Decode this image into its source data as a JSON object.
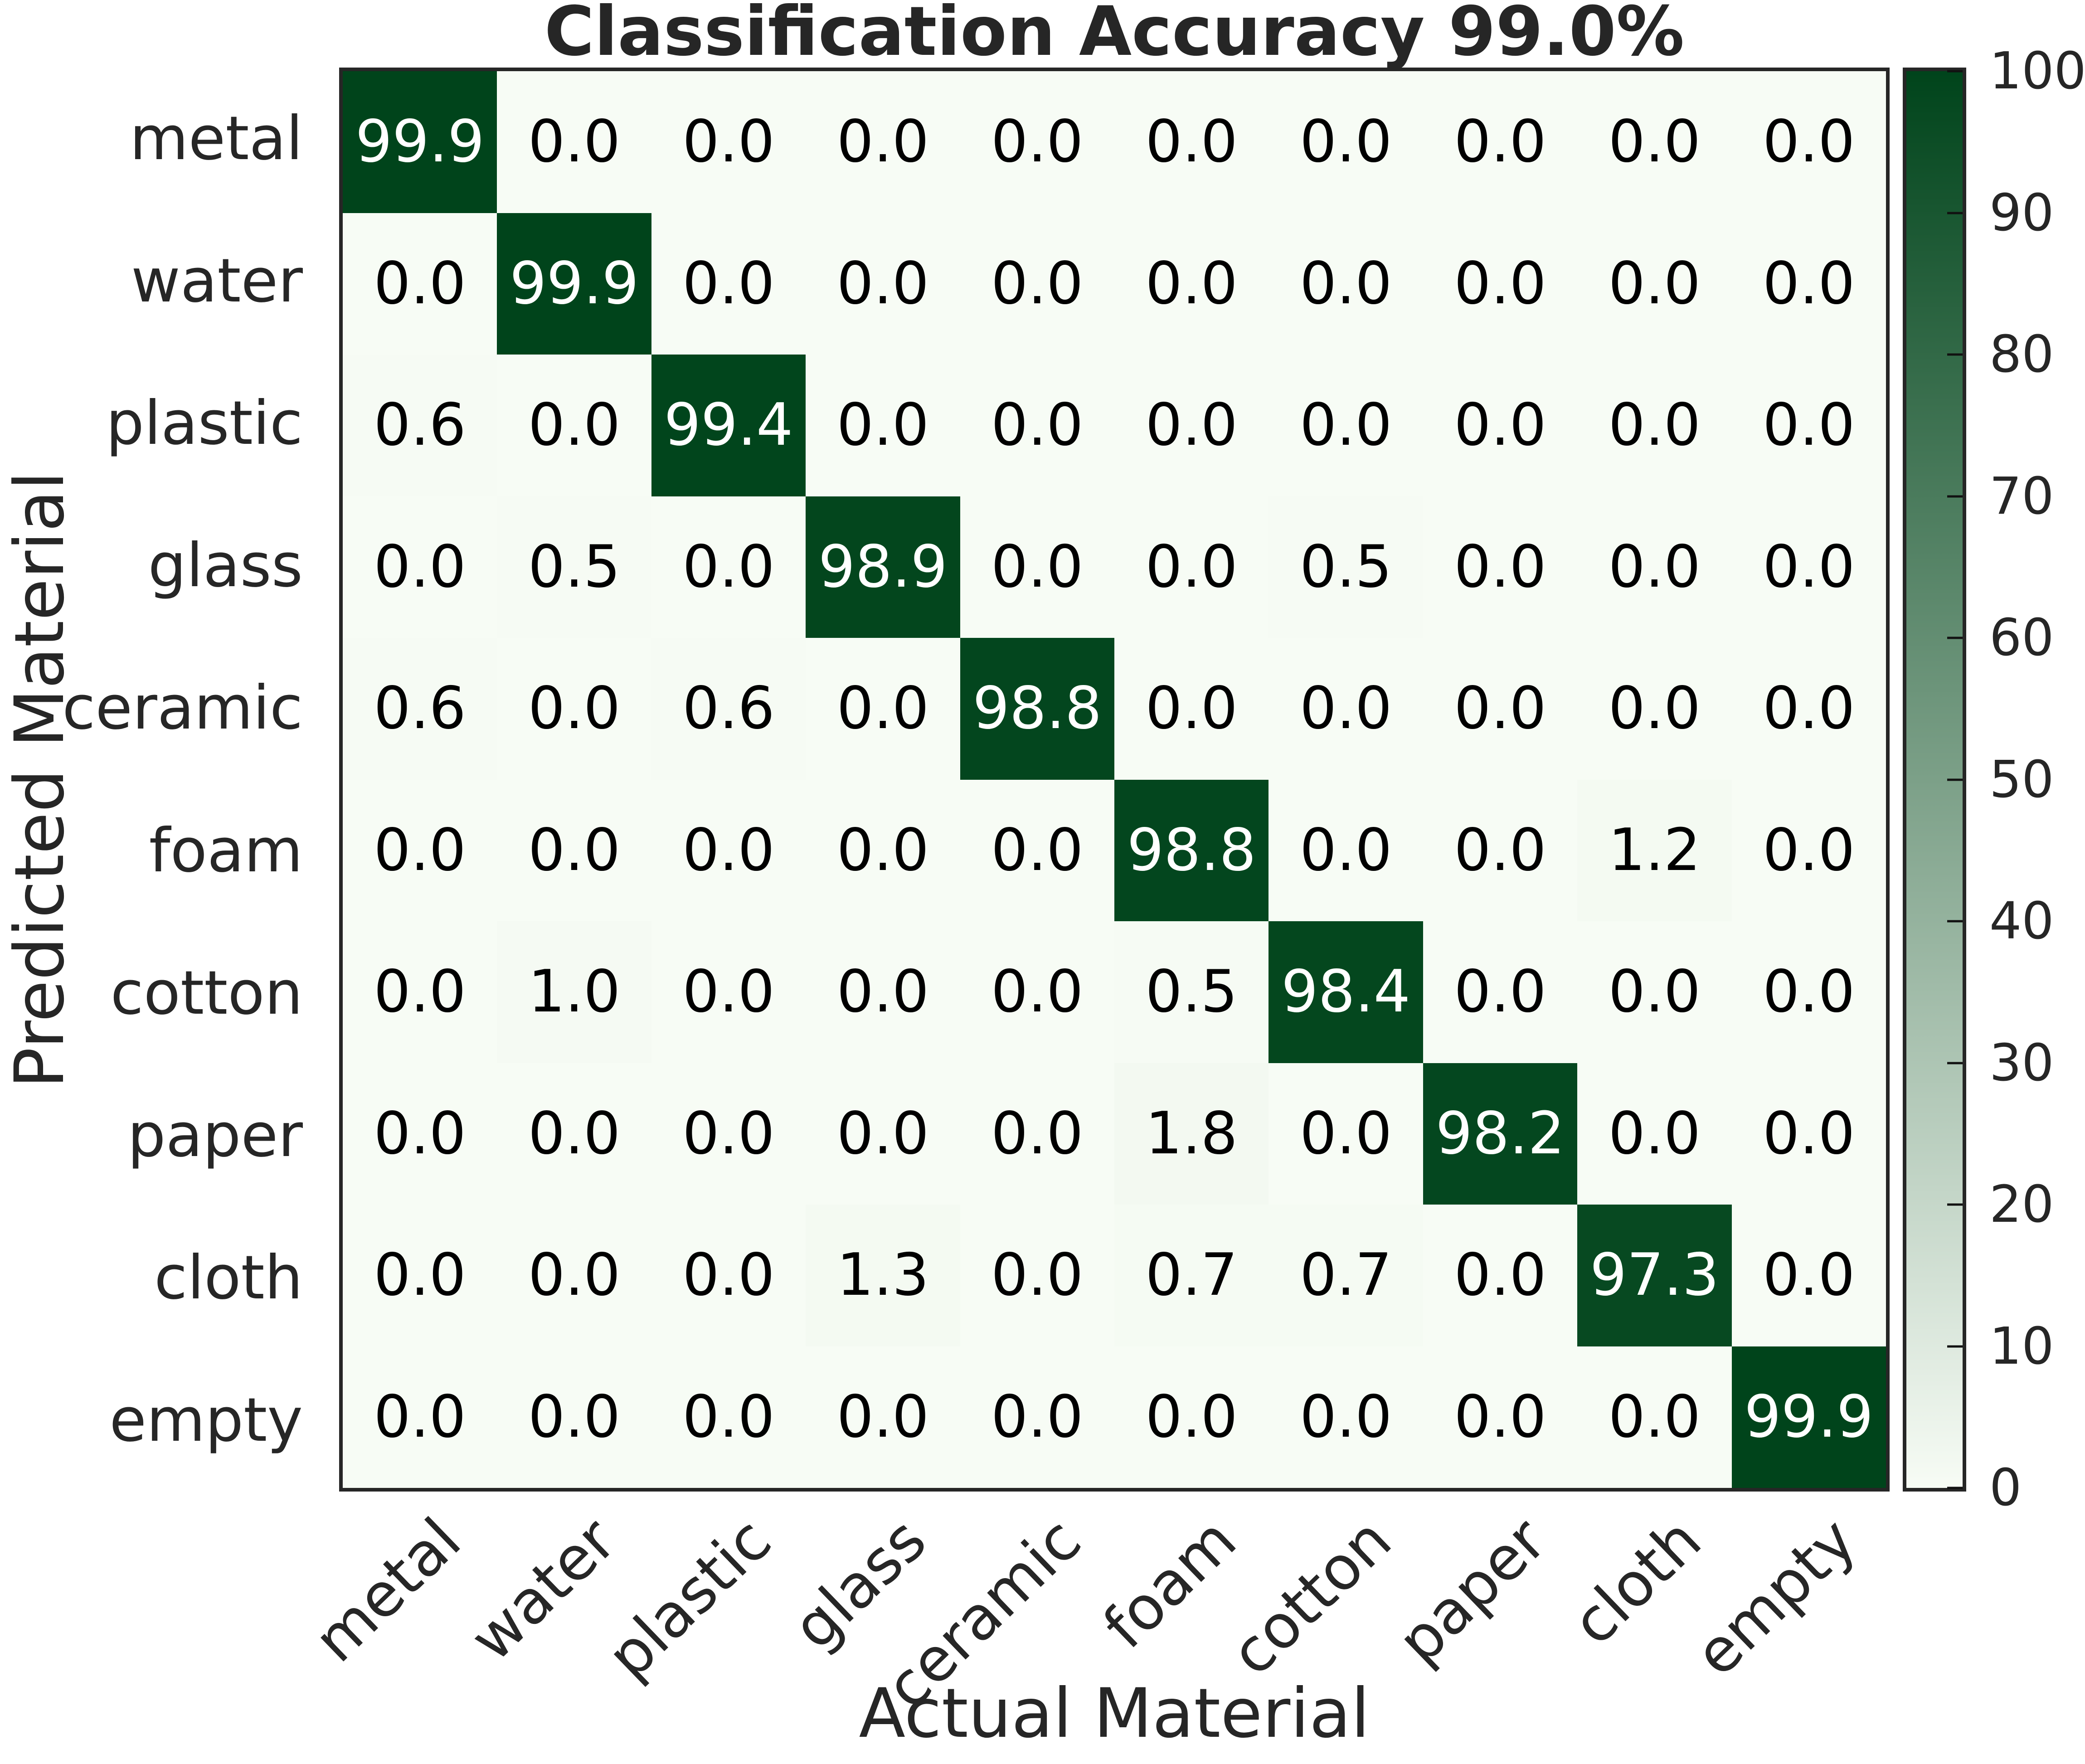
{
  "title": "Classification Accuracy 99.0%",
  "chart_data": {
    "type": "heatmap",
    "title": "Classification Accuracy 99.0%",
    "xlabel": "Actual Material",
    "ylabel": "Predicted Material",
    "categories": [
      "metal",
      "water",
      "plastic",
      "glass",
      "ceramic",
      "foam",
      "cotton",
      "paper",
      "cloth",
      "empty"
    ],
    "matrix": [
      [
        99.9,
        0.0,
        0.0,
        0.0,
        0.0,
        0.0,
        0.0,
        0.0,
        0.0,
        0.0
      ],
      [
        0.0,
        99.9,
        0.0,
        0.0,
        0.0,
        0.0,
        0.0,
        0.0,
        0.0,
        0.0
      ],
      [
        0.6,
        0.0,
        99.4,
        0.0,
        0.0,
        0.0,
        0.0,
        0.0,
        0.0,
        0.0
      ],
      [
        0.0,
        0.5,
        0.0,
        98.9,
        0.0,
        0.0,
        0.5,
        0.0,
        0.0,
        0.0
      ],
      [
        0.6,
        0.0,
        0.6,
        0.0,
        98.8,
        0.0,
        0.0,
        0.0,
        0.0,
        0.0
      ],
      [
        0.0,
        0.0,
        0.0,
        0.0,
        0.0,
        98.8,
        0.0,
        0.0,
        1.2,
        0.0
      ],
      [
        0.0,
        1.0,
        0.0,
        0.0,
        0.0,
        0.5,
        98.4,
        0.0,
        0.0,
        0.0
      ],
      [
        0.0,
        0.0,
        0.0,
        0.0,
        0.0,
        1.8,
        0.0,
        98.2,
        0.0,
        0.0
      ],
      [
        0.0,
        0.0,
        0.0,
        1.3,
        0.0,
        0.7,
        0.7,
        0.0,
        97.3,
        0.0
      ],
      [
        0.0,
        0.0,
        0.0,
        0.0,
        0.0,
        0.0,
        0.0,
        0.0,
        0.0,
        99.9
      ]
    ],
    "value_decimals": 1,
    "x_tick_rotation_deg": 44,
    "grid": false,
    "colorbar": {
      "min": 0,
      "max": 100,
      "ticks": [
        0,
        10,
        20,
        30,
        40,
        50,
        60,
        70,
        80,
        90,
        100
      ],
      "position": "right"
    },
    "colormap": {
      "low": "#f7fcf5",
      "high": "#00441b"
    },
    "cell_text": {
      "low_color": "#000000",
      "high_color": "#ffffff",
      "white_threshold": 50
    },
    "text_color": "#262626",
    "spine_color": "#262626",
    "background": "#ffffff"
  }
}
